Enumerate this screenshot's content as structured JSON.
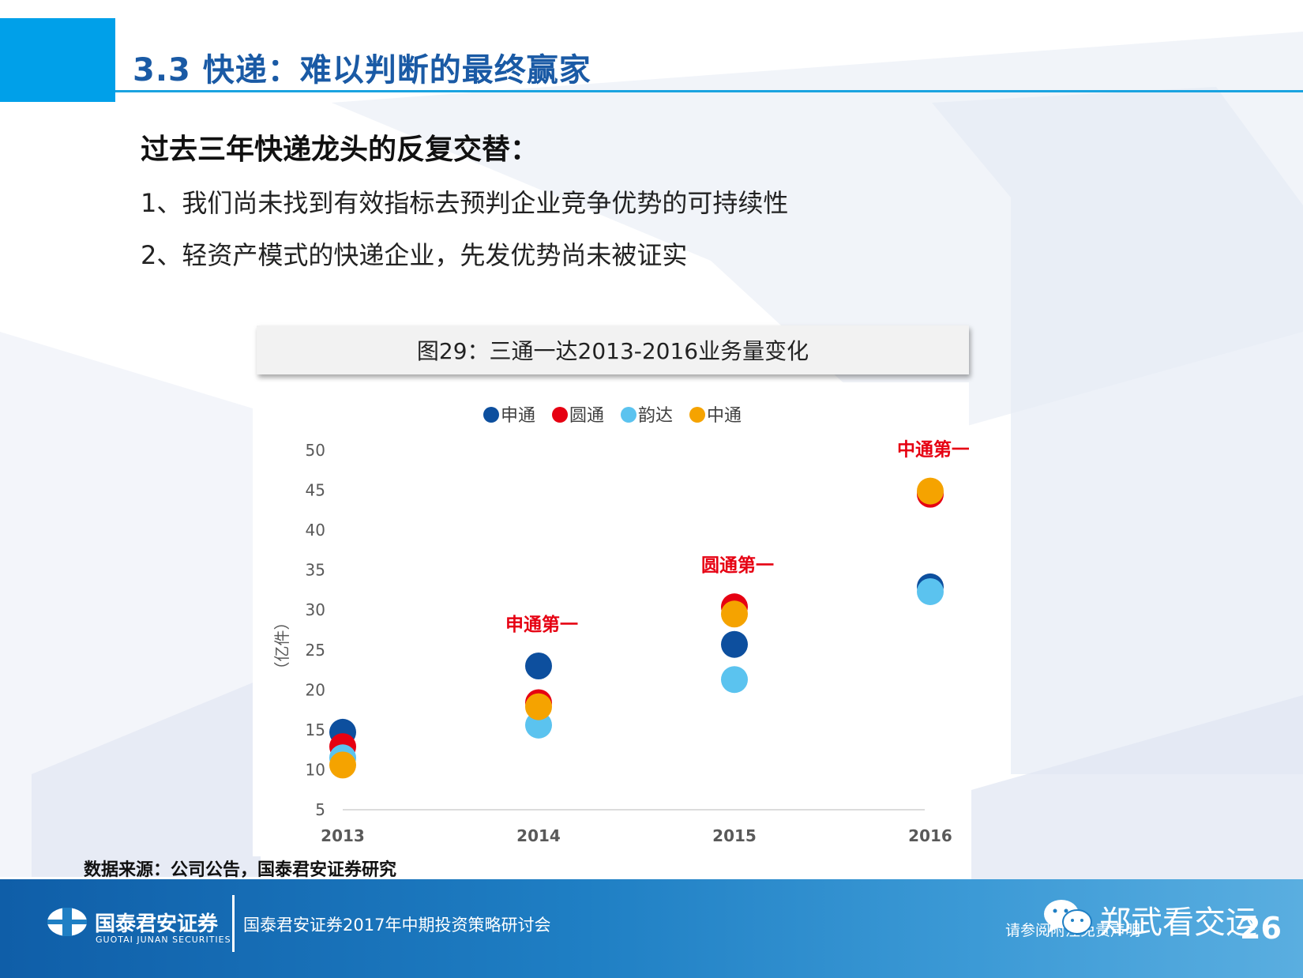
{
  "header": {
    "title": "3.3 快递：难以判断的最终赢家"
  },
  "content": {
    "subtitle": "过去三年快递龙头的反复交替：",
    "points": [
      "1、我们尚未找到有效指标去预判企业竞争优势的可持续性",
      "2、轻资产模式的快递企业，先发优势尚未被证实"
    ]
  },
  "figure": {
    "caption": "图29：三通一达2013-2016业务量变化",
    "source": "数据来源：公司公告，国泰君安证券研究"
  },
  "chart_data": {
    "type": "scatter",
    "title": "",
    "categories": [
      "2013",
      "2014",
      "2015",
      "2016"
    ],
    "xlabel": "",
    "ylabel": "（亿件）",
    "ylim": [
      5,
      50
    ],
    "yticks": [
      5,
      10,
      15,
      20,
      25,
      30,
      35,
      40,
      45,
      50
    ],
    "grid": false,
    "legend_position": "top-center",
    "series": [
      {
        "name": "申通",
        "color": "#0d4f9e",
        "values": [
          14.7,
          23.0,
          25.7,
          32.9
        ]
      },
      {
        "name": "圆通",
        "color": "#e60012",
        "values": [
          12.9,
          18.4,
          30.4,
          44.5
        ]
      },
      {
        "name": "韵达",
        "color": "#5bc3ef",
        "values": [
          11.5,
          15.6,
          21.3,
          32.3
        ]
      },
      {
        "name": "中通",
        "color": "#f5a300",
        "values": [
          10.6,
          17.9,
          29.5,
          44.9
        ]
      }
    ],
    "annotations": [
      {
        "text": "申通第一",
        "category": "2014",
        "color": "#e60012"
      },
      {
        "text": "圆通第一",
        "category": "2015",
        "color": "#e60012"
      },
      {
        "text": "中通第一",
        "category": "2016",
        "color": "#e60012"
      }
    ]
  },
  "footer": {
    "brand": "国泰君安证券",
    "brand_en": "GUOTAI JUNAN SECURITIES",
    "event": "国泰君安证券2017年中期投资策略研讨会",
    "disclaimer": "请参阅附注免责声明",
    "wechat_name": "郑武看交运",
    "page_number": "26"
  },
  "colors": {
    "accent_blue": "#00a0e9",
    "title_blue": "#1a5aa5",
    "footer_blue": "#1f7fc4"
  },
  "icons": [
    "guotai-junan-logo-icon",
    "wechat-icon"
  ]
}
